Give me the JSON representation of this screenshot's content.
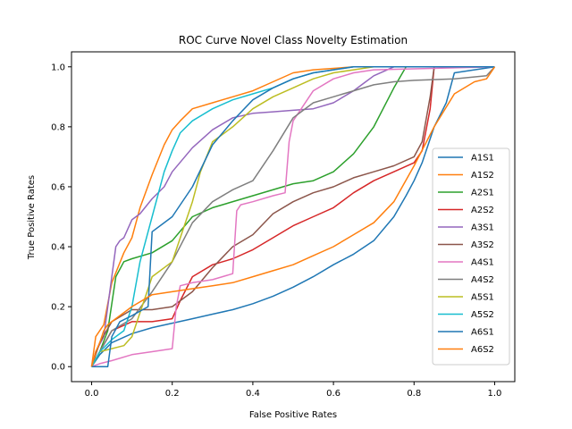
{
  "chart_data": {
    "type": "line",
    "title": "ROC Curve Novel Class Novelty Estimation",
    "xlabel": "False Positive Rates",
    "ylabel": "True Positive Rates",
    "xlim": [
      -0.05,
      1.05
    ],
    "ylim": [
      -0.05,
      1.05
    ],
    "xticks": [
      0.0,
      0.2,
      0.4,
      0.6,
      0.8,
      1.0
    ],
    "yticks": [
      0.0,
      0.2,
      0.4,
      0.6,
      0.8,
      1.0
    ],
    "xtick_labels": [
      "0.0",
      "0.2",
      "0.4",
      "0.6",
      "0.8",
      "1.0"
    ],
    "ytick_labels": [
      "0.0",
      "0.2",
      "0.4",
      "0.6",
      "0.8",
      "1.0"
    ],
    "grid": false,
    "legend_position": "right",
    "series": [
      {
        "name": "A1S1",
        "color": "#1f77b4",
        "x": [
          0.0,
          0.02,
          0.05,
          0.1,
          0.15,
          0.2,
          0.25,
          0.3,
          0.35,
          0.4,
          0.45,
          0.5,
          0.55,
          0.6,
          0.65,
          0.7,
          0.75,
          0.78,
          0.8,
          0.82,
          0.85,
          0.88,
          0.9,
          1.0
        ],
        "y": [
          0.0,
          0.04,
          0.08,
          0.11,
          0.13,
          0.145,
          0.16,
          0.175,
          0.19,
          0.21,
          0.235,
          0.265,
          0.3,
          0.34,
          0.375,
          0.42,
          0.5,
          0.57,
          0.62,
          0.68,
          0.8,
          0.88,
          0.98,
          1.0
        ]
      },
      {
        "name": "A1S2",
        "color": "#ff7f0e",
        "x": [
          0.0,
          0.01,
          0.03,
          0.05,
          0.08,
          0.1,
          0.12,
          0.15,
          0.18,
          0.2,
          0.22,
          0.25,
          0.3,
          0.35,
          0.4,
          0.45,
          0.5,
          0.55,
          0.6,
          0.65,
          0.7,
          0.75,
          0.8,
          1.0
        ],
        "y": [
          0.0,
          0.1,
          0.14,
          0.28,
          0.38,
          0.43,
          0.53,
          0.64,
          0.74,
          0.79,
          0.82,
          0.86,
          0.88,
          0.9,
          0.92,
          0.95,
          0.98,
          0.99,
          0.995,
          1.0,
          1.0,
          1.0,
          1.0,
          1.0
        ]
      },
      {
        "name": "A2S1",
        "color": "#2ca02c",
        "x": [
          0.0,
          0.02,
          0.04,
          0.06,
          0.08,
          0.1,
          0.15,
          0.2,
          0.25,
          0.3,
          0.4,
          0.5,
          0.55,
          0.6,
          0.65,
          0.7,
          0.75,
          0.78,
          1.0
        ],
        "y": [
          0.0,
          0.05,
          0.12,
          0.3,
          0.35,
          0.36,
          0.38,
          0.42,
          0.5,
          0.53,
          0.57,
          0.61,
          0.62,
          0.65,
          0.71,
          0.8,
          0.93,
          1.0,
          1.0
        ]
      },
      {
        "name": "A2S2",
        "color": "#d62728",
        "x": [
          0.0,
          0.02,
          0.05,
          0.1,
          0.15,
          0.2,
          0.22,
          0.25,
          0.3,
          0.35,
          0.4,
          0.45,
          0.5,
          0.55,
          0.6,
          0.65,
          0.7,
          0.75,
          0.8,
          0.82,
          0.84,
          0.85,
          1.0
        ],
        "y": [
          0.0,
          0.05,
          0.12,
          0.15,
          0.15,
          0.16,
          0.22,
          0.3,
          0.34,
          0.36,
          0.39,
          0.43,
          0.47,
          0.5,
          0.53,
          0.58,
          0.62,
          0.65,
          0.68,
          0.72,
          0.86,
          1.0,
          1.0
        ]
      },
      {
        "name": "A3S1",
        "color": "#9467bd",
        "x": [
          0.0,
          0.01,
          0.03,
          0.04,
          0.05,
          0.06,
          0.07,
          0.08,
          0.1,
          0.12,
          0.15,
          0.18,
          0.2,
          0.25,
          0.3,
          0.35,
          0.4,
          0.45,
          0.5,
          0.55,
          0.6,
          0.65,
          0.68,
          0.7,
          0.75,
          1.0
        ],
        "y": [
          0.0,
          0.05,
          0.1,
          0.2,
          0.3,
          0.4,
          0.42,
          0.43,
          0.49,
          0.51,
          0.56,
          0.6,
          0.65,
          0.73,
          0.79,
          0.83,
          0.845,
          0.85,
          0.855,
          0.86,
          0.88,
          0.92,
          0.95,
          0.97,
          1.0,
          1.0
        ]
      },
      {
        "name": "A3S2",
        "color": "#8c564b",
        "x": [
          0.0,
          0.02,
          0.05,
          0.1,
          0.15,
          0.2,
          0.25,
          0.3,
          0.35,
          0.4,
          0.45,
          0.5,
          0.55,
          0.6,
          0.65,
          0.7,
          0.75,
          0.8,
          0.82,
          0.84,
          0.85,
          1.0
        ],
        "y": [
          0.0,
          0.08,
          0.15,
          0.19,
          0.19,
          0.2,
          0.25,
          0.33,
          0.4,
          0.44,
          0.51,
          0.55,
          0.58,
          0.6,
          0.63,
          0.65,
          0.67,
          0.7,
          0.75,
          0.9,
          1.0,
          1.0
        ]
      },
      {
        "name": "A4S1",
        "color": "#e377c2",
        "x": [
          0.0,
          0.02,
          0.05,
          0.1,
          0.15,
          0.2,
          0.21,
          0.22,
          0.25,
          0.3,
          0.35,
          0.36,
          0.37,
          0.4,
          0.45,
          0.48,
          0.49,
          0.5,
          0.55,
          0.6,
          0.65,
          0.7,
          1.0
        ],
        "y": [
          0.0,
          0.01,
          0.02,
          0.04,
          0.05,
          0.06,
          0.2,
          0.27,
          0.28,
          0.29,
          0.31,
          0.52,
          0.54,
          0.55,
          0.57,
          0.58,
          0.75,
          0.82,
          0.92,
          0.96,
          0.98,
          0.99,
          1.0
        ]
      },
      {
        "name": "A4S2",
        "color": "#7f7f7f",
        "x": [
          0.0,
          0.02,
          0.05,
          0.1,
          0.15,
          0.2,
          0.25,
          0.3,
          0.35,
          0.4,
          0.45,
          0.5,
          0.55,
          0.6,
          0.65,
          0.7,
          0.75,
          0.8,
          0.9,
          0.98,
          1.0
        ],
        "y": [
          0.0,
          0.05,
          0.12,
          0.16,
          0.25,
          0.35,
          0.48,
          0.55,
          0.59,
          0.62,
          0.72,
          0.83,
          0.88,
          0.9,
          0.92,
          0.94,
          0.95,
          0.955,
          0.96,
          0.97,
          1.0
        ]
      },
      {
        "name": "A5S1",
        "color": "#bcbd22",
        "x": [
          0.0,
          0.02,
          0.05,
          0.08,
          0.1,
          0.15,
          0.2,
          0.25,
          0.27,
          0.3,
          0.35,
          0.4,
          0.45,
          0.5,
          0.55,
          0.6,
          0.65,
          0.7,
          0.75,
          1.0
        ],
        "y": [
          0.0,
          0.05,
          0.06,
          0.07,
          0.1,
          0.3,
          0.35,
          0.55,
          0.65,
          0.75,
          0.8,
          0.86,
          0.9,
          0.93,
          0.96,
          0.98,
          0.99,
          1.0,
          1.0,
          1.0
        ]
      },
      {
        "name": "A5S2",
        "color": "#17becf",
        "x": [
          0.0,
          0.02,
          0.05,
          0.08,
          0.1,
          0.12,
          0.15,
          0.18,
          0.2,
          0.22,
          0.25,
          0.3,
          0.35,
          0.4,
          0.45,
          0.5,
          0.55,
          0.6,
          0.65,
          0.7,
          1.0
        ],
        "y": [
          0.0,
          0.05,
          0.09,
          0.12,
          0.2,
          0.35,
          0.5,
          0.65,
          0.72,
          0.78,
          0.82,
          0.86,
          0.89,
          0.91,
          0.93,
          0.96,
          0.98,
          0.99,
          1.0,
          1.0,
          1.0
        ]
      },
      {
        "name": "A6S1",
        "color": "#1f77b4",
        "x": [
          0.0,
          0.02,
          0.04,
          0.05,
          0.07,
          0.1,
          0.14,
          0.15,
          0.2,
          0.25,
          0.3,
          0.35,
          0.4,
          0.45,
          0.5,
          0.55,
          0.6,
          0.65,
          0.7,
          1.0
        ],
        "y": [
          0.0,
          0.0,
          0.0,
          0.1,
          0.15,
          0.17,
          0.2,
          0.45,
          0.5,
          0.6,
          0.74,
          0.82,
          0.89,
          0.93,
          0.96,
          0.98,
          0.99,
          1.0,
          1.0,
          1.0
        ]
      },
      {
        "name": "A6S2",
        "color": "#ff7f0e",
        "x": [
          0.0,
          0.01,
          0.02,
          0.03,
          0.04,
          0.05,
          0.1,
          0.15,
          0.2,
          0.25,
          0.3,
          0.35,
          0.4,
          0.45,
          0.5,
          0.55,
          0.6,
          0.65,
          0.7,
          0.75,
          0.8,
          0.85,
          0.9,
          0.95,
          0.98,
          1.0
        ],
        "y": [
          0.0,
          0.05,
          0.08,
          0.12,
          0.14,
          0.15,
          0.2,
          0.24,
          0.25,
          0.26,
          0.27,
          0.28,
          0.3,
          0.32,
          0.34,
          0.37,
          0.4,
          0.44,
          0.48,
          0.55,
          0.67,
          0.8,
          0.91,
          0.95,
          0.96,
          1.0
        ]
      }
    ]
  }
}
